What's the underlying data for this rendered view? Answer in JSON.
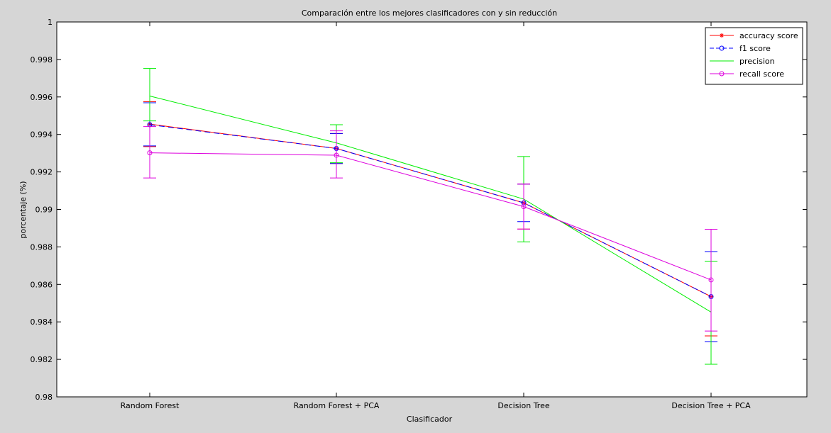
{
  "chart_data": {
    "type": "line",
    "title": "Comparación entre los mejores clasificadores con y sin reducción",
    "xlabel": "Clasificador",
    "ylabel": "porcentaje (%)",
    "categories": [
      "Random Forest",
      "Random Forest + PCA",
      "Decision Tree",
      "Decision Tree + PCA"
    ],
    "ylim": [
      0.98,
      1.0
    ],
    "yticks": [
      0.98,
      0.982,
      0.984,
      0.986,
      0.988,
      0.99,
      0.992,
      0.994,
      0.996,
      0.998,
      1
    ],
    "ytick_labels": [
      "0.98",
      "0.982",
      "0.984",
      "0.986",
      "0.988",
      "0.99",
      "0.992",
      "0.994",
      "0.996",
      "0.998",
      "1"
    ],
    "grid": false,
    "legend_position": "top-right",
    "series": [
      {
        "name": "accuracy score",
        "color": "#ff0000",
        "dash": "solid",
        "marker": "asterisk",
        "values": [
          0.99455,
          0.99325,
          0.99035,
          0.98535
        ],
        "err_low": [
          0.99335,
          0.99245,
          0.98895,
          0.98325
        ],
        "err_high": [
          0.99575,
          0.99405,
          0.99135,
          0.98775
        ]
      },
      {
        "name": "f1 score",
        "color": "#0000ff",
        "dash": "dashed",
        "marker": "circle",
        "values": [
          0.99452,
          0.99325,
          0.99035,
          0.98535
        ],
        "err_low": [
          0.99339,
          0.99245,
          0.98935,
          0.98295
        ],
        "err_high": [
          0.99569,
          0.99405,
          0.99135,
          0.98775
        ]
      },
      {
        "name": "precision",
        "color": "#00ee00",
        "dash": "solid",
        "marker": "none",
        "values": [
          0.99605,
          0.99355,
          0.99055,
          0.98452
        ],
        "err_low": [
          0.99472,
          0.99249,
          0.98827,
          0.98174
        ],
        "err_high": [
          0.99752,
          0.99452,
          0.99282,
          0.98724
        ]
      },
      {
        "name": "recall score",
        "color": "#dd00dd",
        "dash": "solid",
        "marker": "circle",
        "values": [
          0.99302,
          0.99289,
          0.99015,
          0.98624
        ],
        "err_low": [
          0.99168,
          0.99168,
          0.98895,
          0.98351
        ],
        "err_high": [
          0.99442,
          0.99419,
          0.99135,
          0.98894
        ]
      }
    ]
  }
}
